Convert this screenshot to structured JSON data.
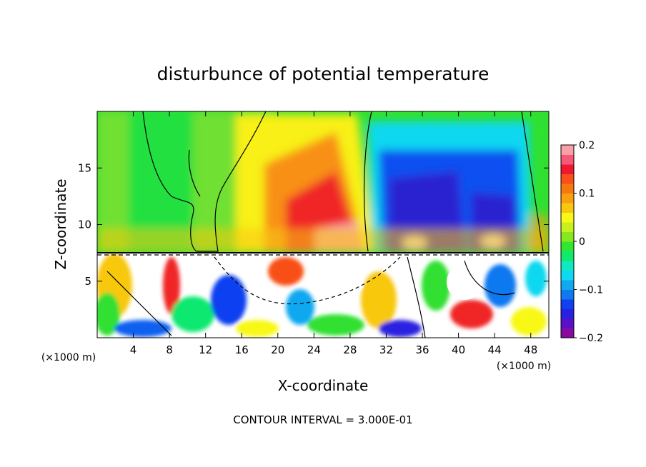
{
  "chart_data": {
    "type": "heatmap",
    "title": "disturbunce of potential temperature",
    "xlabel": "X-coordinate",
    "ylabel": "Z-coordinate",
    "x_unit_label": "(×1000 m)",
    "y_unit_label": "(×1000 m)",
    "x_range": [
      0,
      50
    ],
    "y_range": [
      0,
      20
    ],
    "x_ticks": [
      4,
      8,
      12,
      16,
      20,
      24,
      28,
      32,
      36,
      40,
      44,
      48
    ],
    "y_ticks": [
      5,
      10,
      15
    ],
    "colorbar": {
      "range": [
        -0.2,
        0.2
      ],
      "ticks": [
        "0.2",
        "0.1",
        "0",
        "−0.1",
        "−0.2"
      ],
      "tick_values": [
        0.2,
        0.1,
        0,
        -0.1,
        -0.2
      ],
      "colors": [
        "#8a0aa0",
        "#5a10c8",
        "#2a20e0",
        "#1040f0",
        "#1078f0",
        "#10a8f0",
        "#10d8f0",
        "#10e8c0",
        "#10e870",
        "#30e830",
        "#88e820",
        "#c8f020",
        "#f8f818",
        "#f8c810",
        "#f8a010",
        "#f87810",
        "#f85018",
        "#f01830",
        "#f85878",
        "#f8a0a8"
      ]
    },
    "footer": "CONTOUR INTERVAL = 3.000E-01",
    "regions": [
      {
        "label": "upper background",
        "value": 0.02
      },
      {
        "label": "warm anomaly",
        "x_center": 25,
        "z_center": 11,
        "value": 0.2
      },
      {
        "label": "cold anomaly",
        "x_center": 38,
        "z_center": 12,
        "value": -0.2
      },
      {
        "label": "cold anomaly (far right)",
        "x_center": 44,
        "z_center": 11,
        "value": -0.15
      },
      {
        "label": "lower turbulent layer",
        "z_range": [
          0,
          7.3
        ],
        "value_range": [
          -0.2,
          0.2
        ]
      }
    ]
  }
}
